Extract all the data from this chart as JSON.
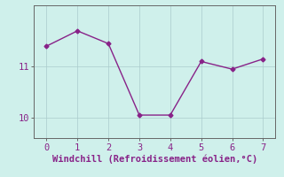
{
  "x": [
    0,
    1,
    2,
    3,
    4,
    5,
    6,
    7
  ],
  "y": [
    11.4,
    11.7,
    11.45,
    10.05,
    10.05,
    11.1,
    10.95,
    11.15
  ],
  "line_color": "#882288",
  "marker": "D",
  "marker_size": 2.5,
  "background_color": "#cff0eb",
  "grid_color": "#aacccc",
  "axis_color": "#666666",
  "label_color": "#882288",
  "xlabel": "Windchill (Refroidissement éolien,°C)",
  "xticks": [
    0,
    1,
    2,
    3,
    4,
    5,
    6,
    7
  ],
  "yticks": [
    10,
    11
  ],
  "xlim": [
    -0.4,
    7.4
  ],
  "ylim": [
    9.6,
    12.2
  ],
  "xlabel_fontsize": 7.5,
  "tick_fontsize": 7.5,
  "linewidth": 1.0
}
